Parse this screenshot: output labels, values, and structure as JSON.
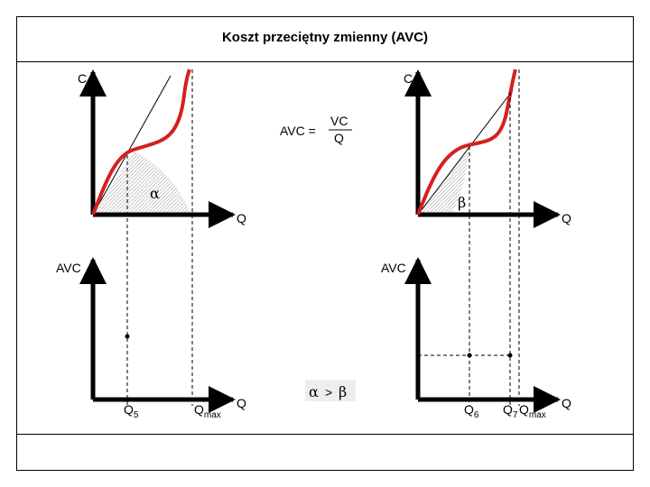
{
  "title": "Koszt  przeciętny  zmienny  (AVC)",
  "labels": {
    "c": "C",
    "q": "Q",
    "avc": "AVC",
    "q_letter": "Q",
    "sub_5": "5",
    "sub_max": "max",
    "sub_6": "6",
    "sub_7": "7",
    "alpha": "α",
    "beta": "β",
    "gt": ">",
    "formula_lhs": "AVC =",
    "formula_num": "VC",
    "formula_den": "Q"
  },
  "colors": {
    "curve": "#d61f1f",
    "axis": "#000000",
    "hatch": "#cccccc"
  }
}
